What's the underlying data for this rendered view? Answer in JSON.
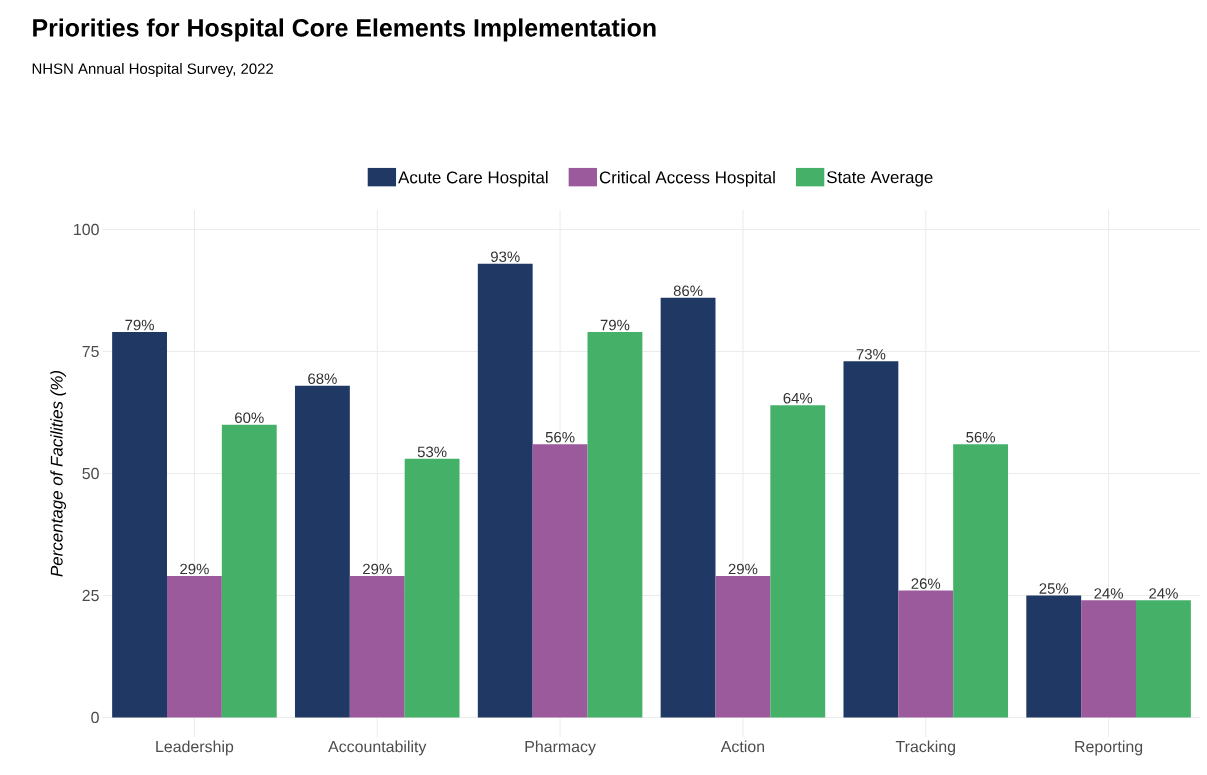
{
  "chart_data": {
    "type": "bar",
    "title": "Priorities for Hospital Core Elements Implementation",
    "subtitle": "NHSN Annual Hospital Survey, 2022",
    "ylabel": "Percentage of Facilities (%)",
    "categories": [
      "Leadership",
      "Accountability",
      "Pharmacy",
      "Action",
      "Tracking",
      "Reporting"
    ],
    "series": [
      {
        "name": "Acute Care Hospital",
        "color": "#1f3864",
        "values": [
          79,
          68,
          93,
          86,
          73,
          25
        ],
        "value_labels": [
          "79%",
          "68%",
          "93%",
          "86%",
          "73%",
          "25%"
        ]
      },
      {
        "name": "Critical Access Hospital",
        "color": "#9b5a9b",
        "values": [
          29,
          29,
          56,
          29,
          26,
          24
        ],
        "value_labels": [
          "29%",
          "29%",
          "56%",
          "29%",
          "26%",
          "24%"
        ]
      },
      {
        "name": "State Average",
        "color": "#45b068",
        "values": [
          60,
          53,
          79,
          64,
          56,
          24
        ],
        "value_labels": [
          "60%",
          "53%",
          "79%",
          "64%",
          "56%",
          "24%"
        ]
      }
    ],
    "ylim": [
      -4,
      104
    ],
    "yticks": [
      0,
      25,
      50,
      75,
      100
    ],
    "grid": true,
    "legend": "top"
  }
}
